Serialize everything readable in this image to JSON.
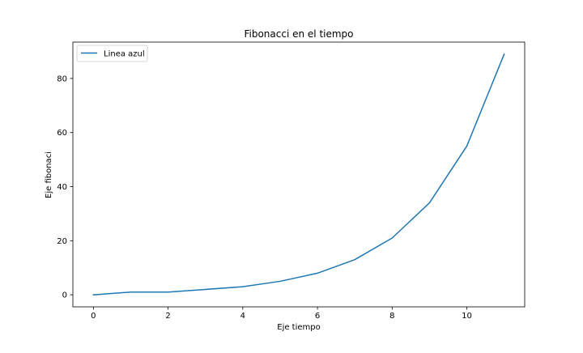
{
  "chart_data": {
    "type": "line",
    "title": "Fibonacci en el tiempo",
    "xlabel": "Eje tiempo",
    "ylabel": "Eje fibonaci",
    "x": [
      0,
      1,
      2,
      3,
      4,
      5,
      6,
      7,
      8,
      9,
      10,
      11
    ],
    "series": [
      {
        "name": "Linea azul",
        "values": [
          0,
          1,
          1,
          2,
          3,
          5,
          8,
          13,
          21,
          34,
          55,
          89
        ],
        "color": "#1f77b4"
      }
    ],
    "xlim": [
      -0.55,
      11.55
    ],
    "ylim": [
      -4.45,
      93.45
    ],
    "xticks": [
      0,
      2,
      4,
      6,
      8,
      10
    ],
    "yticks": [
      0,
      20,
      40,
      60,
      80
    ],
    "grid": false,
    "legend_position": "upper-left"
  }
}
